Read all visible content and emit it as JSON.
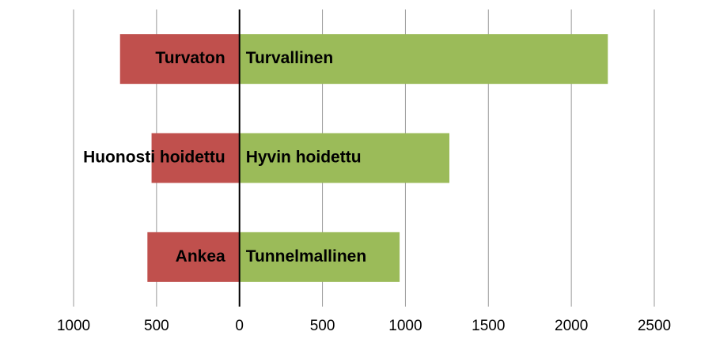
{
  "chart_data": {
    "type": "diverging-bar",
    "series": [
      {
        "color": "#c0504d",
        "values": [
          -720,
          -530,
          -555
        ],
        "labels": [
          "Turvaton",
          "Huonosti hoidettu",
          "Ankea"
        ]
      },
      {
        "color": "#9bbb59",
        "values": [
          2220,
          1265,
          965
        ],
        "labels": [
          "Turvallinen",
          "Hyvin hoidettu",
          "Tunnelmallinen"
        ]
      }
    ],
    "xlim": [
      -1000,
      2500
    ],
    "xticks": [
      {
        "value": -1000,
        "label": "1000"
      },
      {
        "value": -500,
        "label": "500"
      },
      0,
      500,
      1000,
      1500,
      2000,
      2500
    ],
    "grid": true
  }
}
